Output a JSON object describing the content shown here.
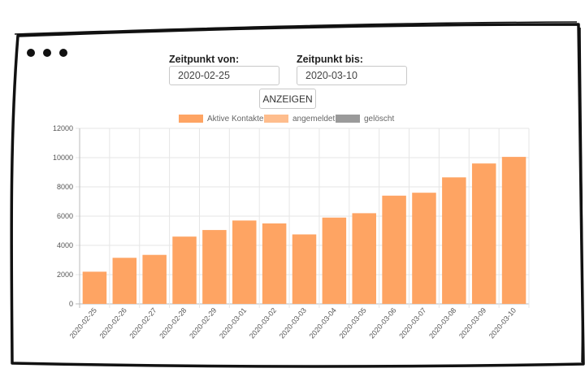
{
  "filters": {
    "from_label": "Zeitpunkt von:",
    "from_value": "2020-02-25",
    "to_label": "Zeitpunkt bis:",
    "to_value": "2020-03-10",
    "show_button_label": "ANZEIGEN"
  },
  "legend": [
    {
      "label": "Aktive Kontakte",
      "color": "#fea463"
    },
    {
      "label": "angemeldet",
      "color": "#febd8d"
    },
    {
      "label": "gelöscht",
      "color": "#9a9a9a"
    }
  ],
  "chart_data": {
    "type": "bar",
    "categories": [
      "2020-02-25",
      "2020-02-26",
      "2020-02-27",
      "2020-02-28",
      "2020-02-29",
      "2020-03-01",
      "2020-03-02",
      "2020-03-03",
      "2020-03-04",
      "2020-03-05",
      "2020-03-06",
      "2020-03-07",
      "2020-03-08",
      "2020-03-09",
      "2020-03-10"
    ],
    "series": [
      {
        "name": "Aktive Kontakte",
        "color": "#fea463",
        "values": [
          2200,
          3150,
          3350,
          4600,
          5050,
          5700,
          5500,
          4750,
          5900,
          6200,
          7400,
          7600,
          8650,
          9600,
          10050
        ]
      }
    ],
    "ylim": [
      0,
      12000
    ],
    "yticks": [
      0,
      2000,
      4000,
      6000,
      8000,
      10000,
      12000
    ],
    "grid": true,
    "legend_position": "top"
  }
}
